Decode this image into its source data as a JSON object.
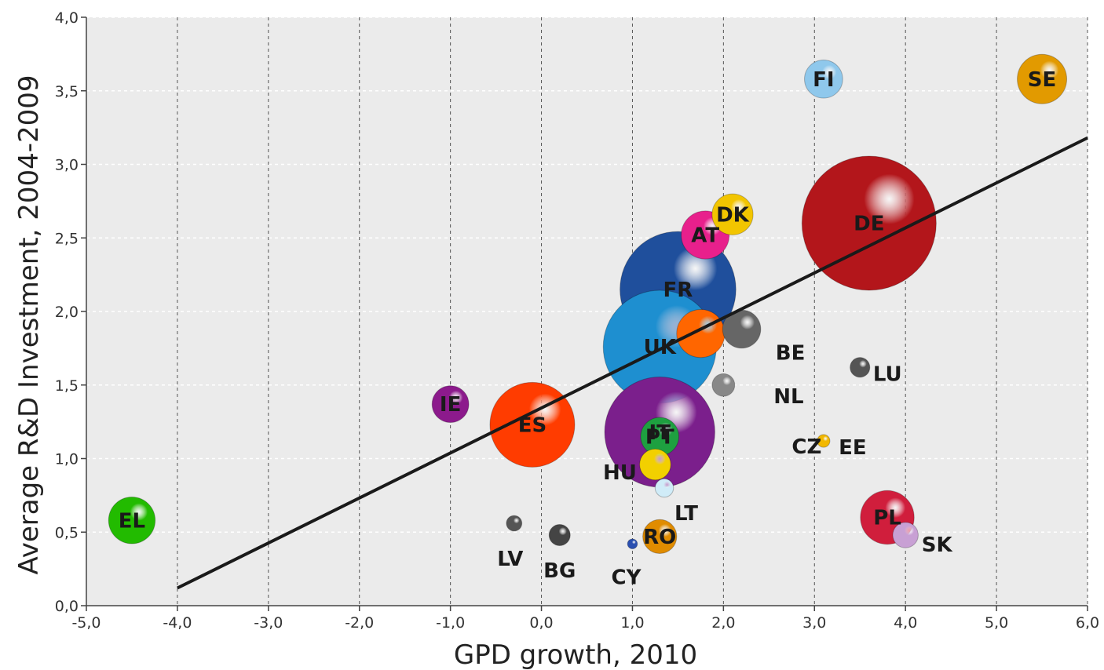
{
  "chart_data": {
    "type": "scatter",
    "subtype": "bubble",
    "xlabel": "GPD growth, 2010",
    "ylabel": "Average R&D Investment, 2004-2009",
    "xlim": [
      -5,
      6
    ],
    "ylim": [
      0,
      4
    ],
    "xticks": [
      -5,
      -4,
      -3,
      -2,
      -1,
      0,
      1,
      2,
      3,
      4,
      5,
      6
    ],
    "xtick_labels": [
      "-5,0",
      "-4,0",
      "-3,0",
      "-2,0",
      "-1,0",
      "0,0",
      "1,0",
      "2,0",
      "3,0",
      "4,0",
      "5,0",
      "6,0"
    ],
    "yticks": [
      0,
      0.5,
      1,
      1.5,
      2,
      2.5,
      3,
      3.5,
      4
    ],
    "ytick_labels": [
      "0,0",
      "0,5",
      "1,0",
      "1,5",
      "2,0",
      "2,5",
      "3,0",
      "3,5",
      "4,0"
    ],
    "grid": true,
    "background": "#ebebeb",
    "trend_line": {
      "x": [
        -4.0,
        6.0
      ],
      "y": [
        0.12,
        3.18
      ],
      "color": "#1a1a1a"
    },
    "points": [
      {
        "label": "FR",
        "x": 1.5,
        "y": 2.15,
        "size": 0.82,
        "color": "#1f4f9c"
      },
      {
        "label": "DE",
        "x": 3.6,
        "y": 2.6,
        "size": 0.95,
        "color": "#b3161b"
      },
      {
        "label": "IT",
        "x": 1.3,
        "y": 1.18,
        "size": 0.78,
        "color": "#7b1f8c"
      },
      {
        "label": "ES",
        "x": -0.1,
        "y": 1.23,
        "size": 0.6,
        "color": "#ff3c00"
      },
      {
        "label": "NL",
        "x": 1.75,
        "y": 1.85,
        "size": 0.34,
        "color": "#ff6600"
      },
      {
        "label": "BE",
        "x": 2.2,
        "y": 1.88,
        "size": 0.27,
        "color": "#666666"
      },
      {
        "label": "CZ",
        "x": 2.0,
        "y": 1.5,
        "size": 0.16,
        "color": "#888888"
      },
      {
        "label": "UK",
        "x": 1.3,
        "y": 1.76,
        "size": 0.8,
        "color": "#1e8fd0"
      },
      {
        "label": "DK",
        "x": 2.1,
        "y": 2.66,
        "size": 0.29,
        "color": "#f2c500"
      },
      {
        "label": "AT",
        "x": 1.8,
        "y": 2.52,
        "size": 0.34,
        "color": "#e8208c"
      },
      {
        "label": "FI",
        "x": 3.1,
        "y": 3.58,
        "size": 0.27,
        "color": "#8fc8ec"
      },
      {
        "label": "SE",
        "x": 5.5,
        "y": 3.58,
        "size": 0.35,
        "color": "#e29a00"
      },
      {
        "label": "IE",
        "x": -1.0,
        "y": 1.37,
        "size": 0.26,
        "color": "#8c1a8c"
      },
      {
        "label": "PT",
        "x": 1.3,
        "y": 1.15,
        "size": 0.27,
        "color": "#1ea040"
      },
      {
        "label": "HU",
        "x": 1.25,
        "y": 0.96,
        "size": 0.22,
        "color": "#f2d000"
      },
      {
        "label": "LT",
        "x": 1.35,
        "y": 0.8,
        "size": 0.13,
        "color": "#d0ecf8"
      },
      {
        "label": "RO",
        "x": 1.3,
        "y": 0.47,
        "size": 0.24,
        "color": "#e08c00"
      },
      {
        "label": "CY",
        "x": 1.0,
        "y": 0.42,
        "size": 0.07,
        "color": "#2a4fb0"
      },
      {
        "label": "BG",
        "x": 0.2,
        "y": 0.48,
        "size": 0.15,
        "color": "#444444"
      },
      {
        "label": "LV",
        "x": -0.3,
        "y": 0.56,
        "size": 0.11,
        "color": "#555555"
      },
      {
        "label": "EL",
        "x": -4.5,
        "y": 0.58,
        "size": 0.33,
        "color": "#22bb00"
      },
      {
        "label": "LU",
        "x": 3.5,
        "y": 1.62,
        "size": 0.14,
        "color": "#555555"
      },
      {
        "label": "EE",
        "x": 3.1,
        "y": 1.12,
        "size": 0.09,
        "color": "#f2b800"
      },
      {
        "label": "PL",
        "x": 3.8,
        "y": 0.6,
        "size": 0.38,
        "color": "#d01e3c"
      },
      {
        "label": "SK",
        "x": 4.0,
        "y": 0.48,
        "size": 0.18,
        "color": "#c8a0d4"
      }
    ]
  }
}
